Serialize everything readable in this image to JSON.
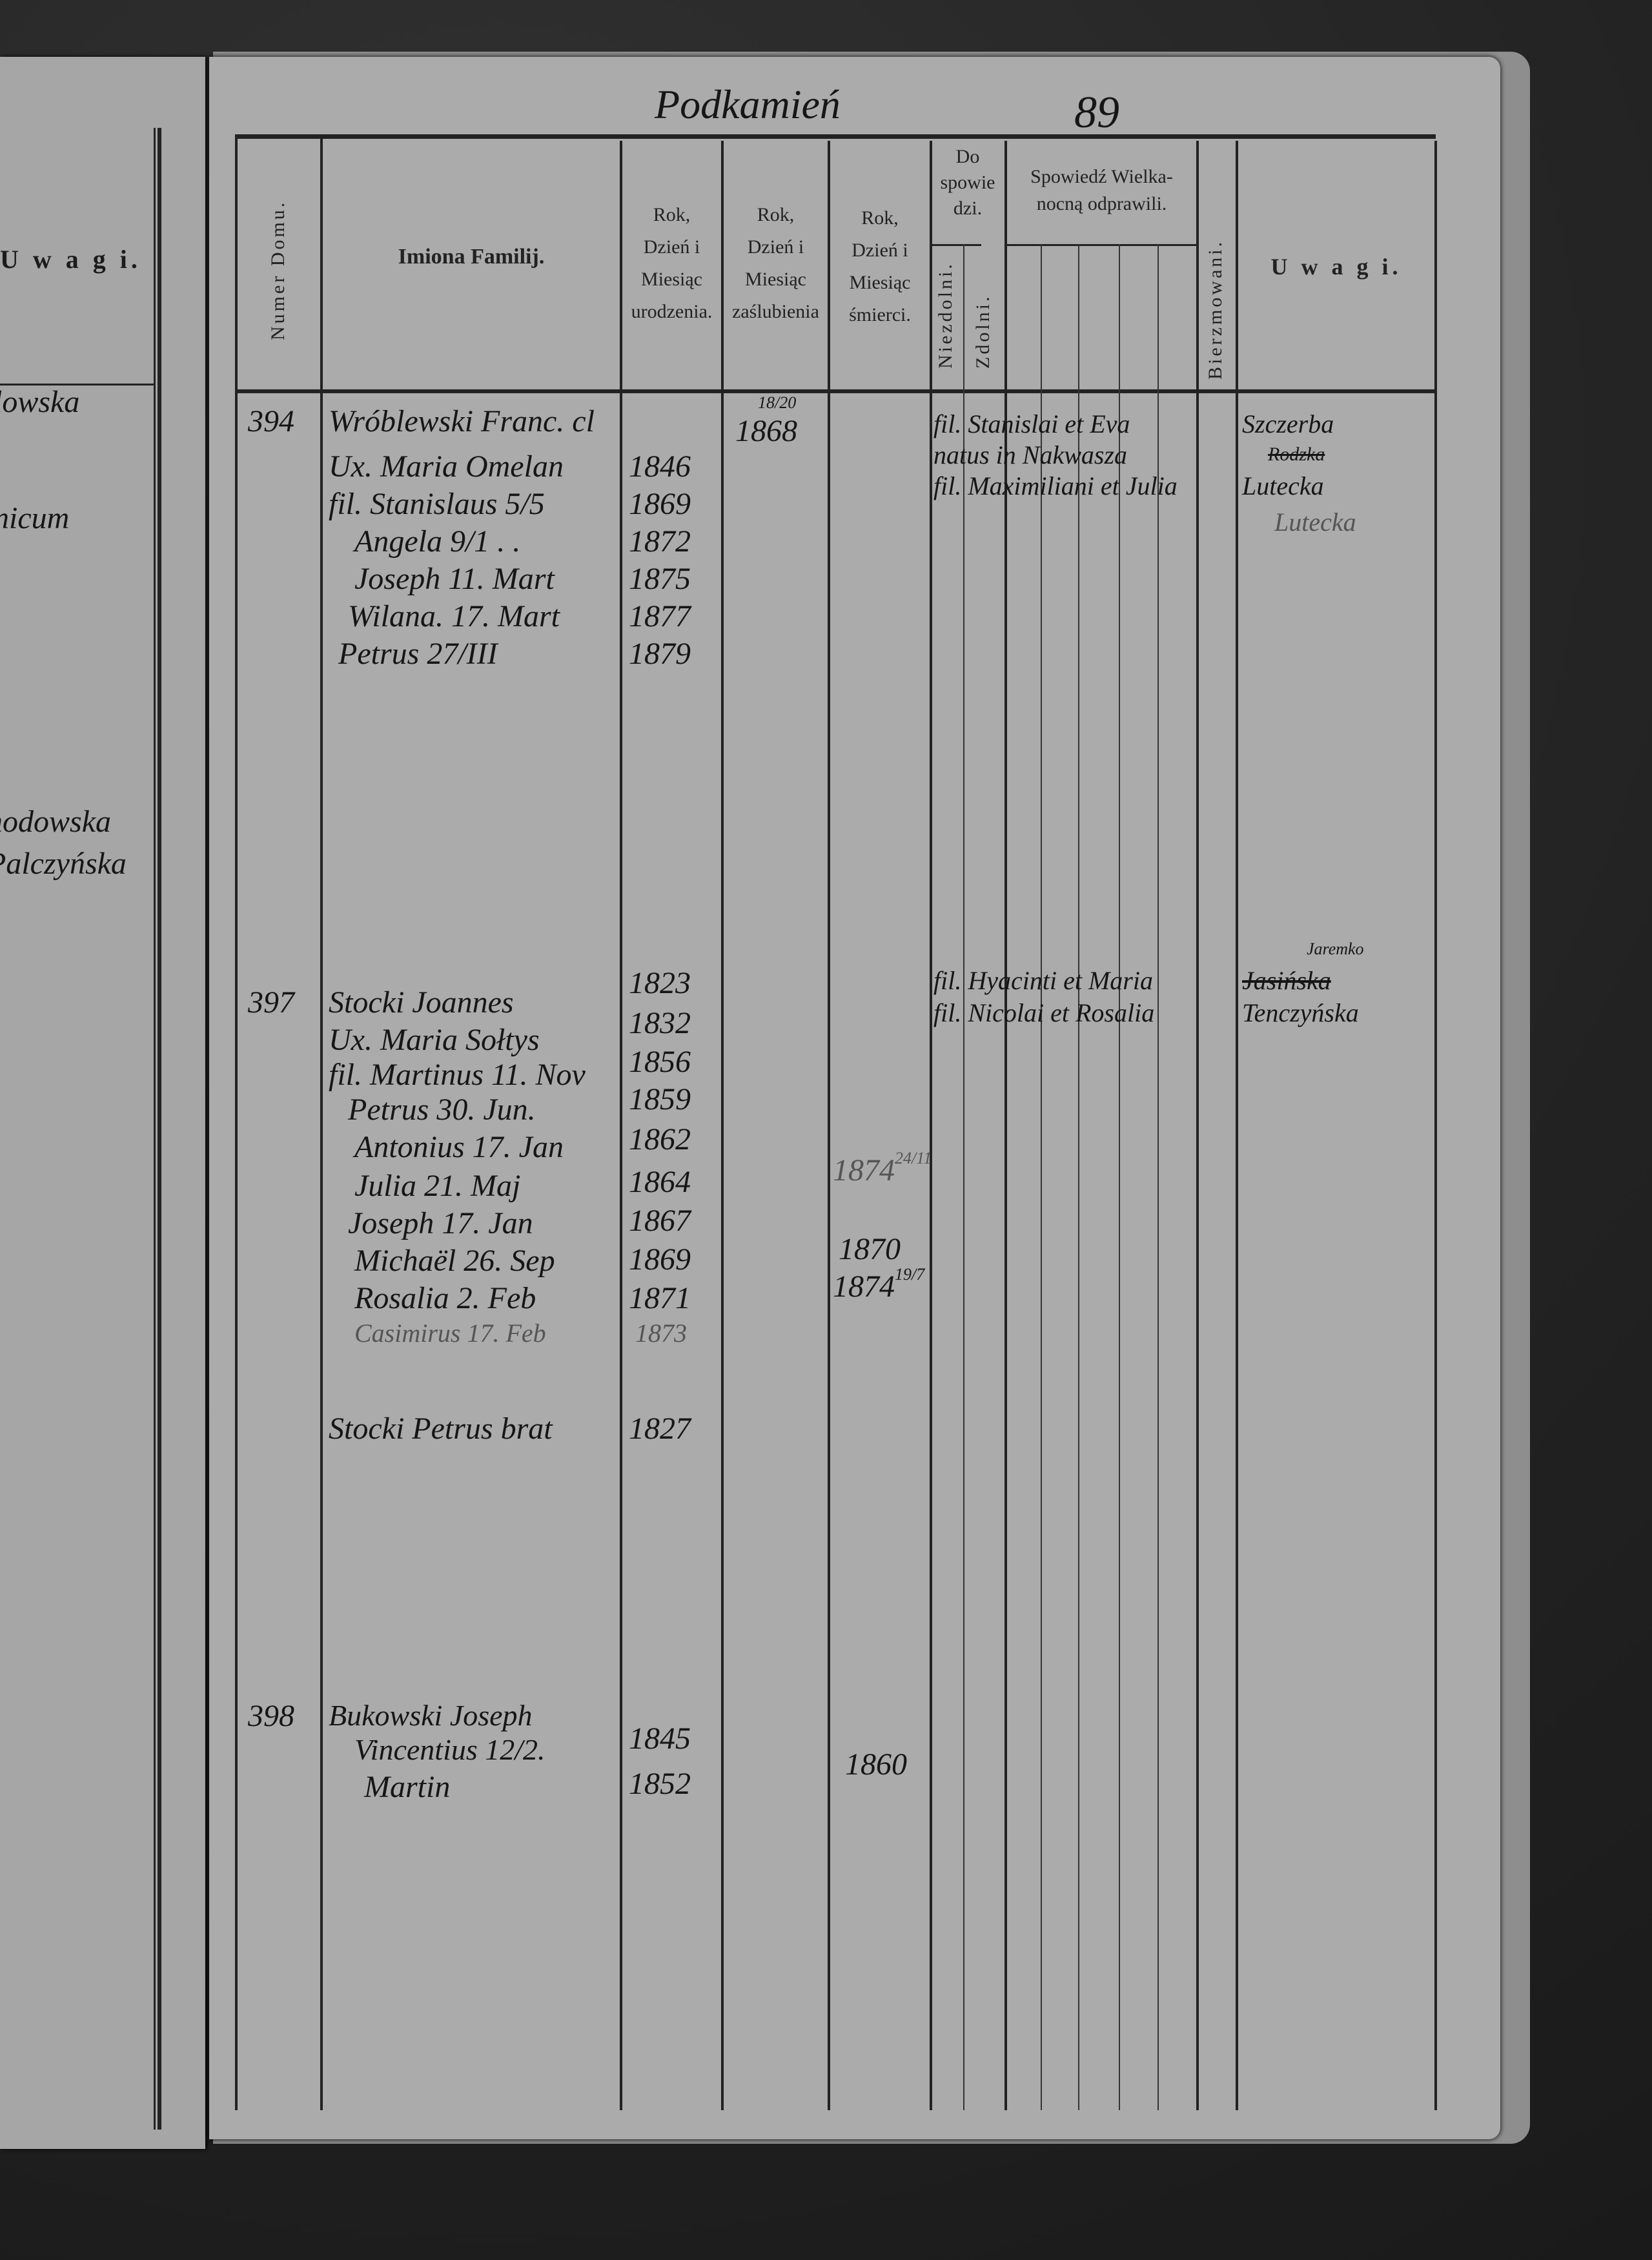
{
  "left_page": {
    "header": "U w a g i.",
    "remarks": [
      "lowska",
      "nicum",
      "hodowska",
      "Palczyńska"
    ]
  },
  "right_page": {
    "place_title": "Podkamień",
    "page_number": "89",
    "columns": {
      "house_number": "Numer Domu.",
      "names": "Imiona Familij.",
      "birth": [
        "Rok,",
        "Dzień i",
        "Miesiąc",
        "urodzenia."
      ],
      "marriage": [
        "Rok,",
        "Dzień i",
        "Miesiąc",
        "zaślubienia"
      ],
      "death": [
        "Rok,",
        "Dzień i",
        "Miesiąc",
        "śmierci."
      ],
      "confession": [
        "Do",
        "spowie",
        "dzi."
      ],
      "unable": "Niezdolni.",
      "able": "Zdolni.",
      "easter": [
        "Spowiedź Wielka-",
        "nocną odprawili."
      ],
      "confirmed": "Bierzmowani.",
      "remarks": "U w a g i."
    },
    "entries": [
      {
        "house": "394",
        "persons": [
          {
            "name": "Wróblewski Franc. cl",
            "birth": "",
            "marriage_top": "18/20",
            "marriage": "1868"
          },
          {
            "name": "Ux. Maria Omelan",
            "birth": "1846"
          },
          {
            "name": "fil. Stanislaus 5/5",
            "birth": "1869"
          },
          {
            "name": "Angela 9/1 . .",
            "birth": "1872"
          },
          {
            "name": "Joseph 11. Mart",
            "birth": "1875"
          },
          {
            "name": "Wilana. 17. Mart",
            "birth": "1877"
          },
          {
            "name": "Petrus 27/III",
            "birth": "1879"
          }
        ],
        "notes": [
          "fil. Stanislai et Eva",
          "natus in Nakwasza",
          "fil. Maximiliani et Julia"
        ],
        "remarks": [
          "Szczerba",
          "Rodzka",
          "Lutecka",
          "Lutecka"
        ]
      },
      {
        "house": "397",
        "persons": [
          {
            "name": "Stocki Joannes",
            "birth": "1823"
          },
          {
            "name": "Ux. Maria Sołtys",
            "birth": "1832"
          },
          {
            "name": "fil. Martinus 11. Nov",
            "birth": "1856"
          },
          {
            "name": "Petrus 30. Jun.",
            "birth": "1859"
          },
          {
            "name": "Antonius 17. Jan",
            "birth": "1862"
          },
          {
            "name": "Julia 21. Maj",
            "birth": "1864",
            "death": "1874",
            "death_day": "24/11"
          },
          {
            "name": "Joseph 17. Jan",
            "birth": "1867"
          },
          {
            "name": "Michaël 26. Sep",
            "birth": "1869",
            "death": "1870"
          },
          {
            "name": "Rosalia 2. Feb",
            "birth": "1871",
            "death": "1874",
            "death_day": "19/7"
          },
          {
            "name": "Casimirus 17. Feb",
            "birth": "1873"
          },
          {
            "name": "Stocki Petrus brat",
            "birth": "1827"
          }
        ],
        "notes": [
          "fil. Hyacinti et Maria",
          "fil. Nicolai et Rosalia"
        ],
        "remarks": [
          "Jaremko",
          "Jasińska",
          "Tenczyńska"
        ]
      },
      {
        "house": "398",
        "persons": [
          {
            "name": "Bukowski Joseph",
            "birth": "1845"
          },
          {
            "name": "Vincentius 12/2.",
            "birth": ""
          },
          {
            "name": "Martin",
            "birth": "1852",
            "death": "1860"
          }
        ]
      }
    ]
  }
}
